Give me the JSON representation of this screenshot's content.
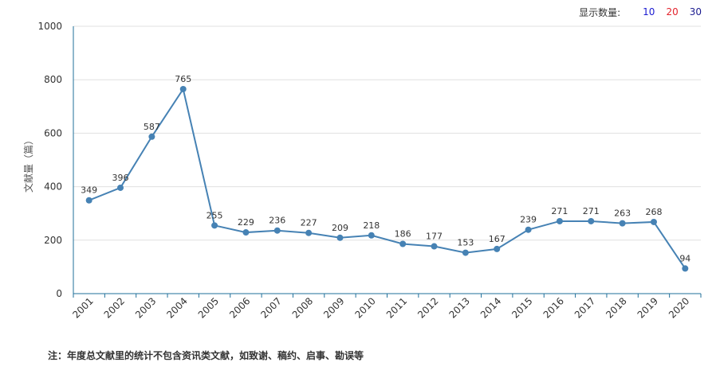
{
  "display_count": {
    "label": "显示数量:",
    "options": [
      {
        "value": "10",
        "color": "#1a1ad1"
      },
      {
        "value": "20",
        "color": "#e3222b"
      },
      {
        "value": "30",
        "color": "#1a1a8f"
      }
    ]
  },
  "chart_data": {
    "type": "line",
    "ylabel": "文献量（篇）",
    "xlabel": "",
    "ylim": [
      0,
      1000
    ],
    "yticks": [
      "0",
      "200",
      "400",
      "600",
      "800",
      "1000"
    ],
    "grid": true,
    "line_color": "#4682b4",
    "categories": [
      "2001",
      "2002",
      "2003",
      "2004",
      "2005",
      "2006",
      "2007",
      "2008",
      "2009",
      "2010",
      "2011",
      "2012",
      "2013",
      "2014",
      "2015",
      "2016",
      "2017",
      "2018",
      "2019",
      "2020"
    ],
    "series": [
      {
        "values": [
          349,
          396,
          587,
          765,
          255,
          229,
          236,
          227,
          209,
          218,
          186,
          177,
          153,
          167,
          239,
          271,
          271,
          263,
          268,
          94
        ]
      }
    ]
  },
  "footnote": "注：年度总文献里的统计不包含资讯类文献，如致谢、稿约、启事、勘误等"
}
